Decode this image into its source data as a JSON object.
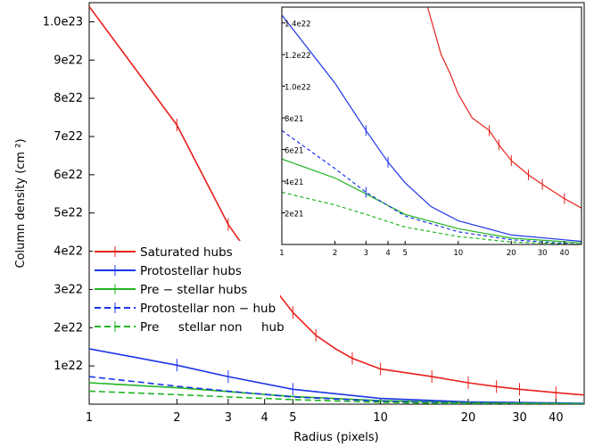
{
  "chart_data": [
    {
      "type": "line",
      "xlabel": "Radius (pixels)",
      "ylabel": "Column density (cm  ²)",
      "x_scale": "log",
      "xlim": [
        1,
        50
      ],
      "ylim": [
        0,
        1.05e+23
      ],
      "x_ticks": [
        1,
        2,
        3,
        4,
        5,
        10,
        20,
        30,
        40
      ],
      "x_tick_labels": [
        "1",
        "2",
        "3",
        "4",
        "5",
        "10",
        "20",
        "30",
        "40"
      ],
      "y_ticks": [
        1e+22,
        2e+22,
        3e+22,
        4e+22,
        5e+22,
        6e+22,
        7e+22,
        8e+22,
        9e+22,
        1e+23
      ],
      "y_tick_labels": [
        "1e22",
        "2e22",
        "3e22",
        "4e22",
        "5e22",
        "6e22",
        "7e22",
        "8e22",
        "9e22",
        "1.0e23"
      ],
      "grid": false,
      "legend_position": "center-left",
      "series": [
        {
          "name": "Saturated hubs",
          "color": "#e8201c",
          "style": "solid",
          "x": [
            1,
            2,
            3,
            4,
            5,
            6,
            7,
            8,
            10,
            15,
            20,
            25,
            30,
            40,
            50
          ],
          "y": [
            1.04e+23,
            7.3e+22,
            4.7e+22,
            3.35e+22,
            2.4e+22,
            1.8e+22,
            1.45e+22,
            1.2e+22,
            9.2e+21,
            7.2e+21,
            5.6e+21,
            4.6e+21,
            3.9e+21,
            3e+21,
            2.4e+21
          ],
          "error_bars_at": [
            2,
            3,
            4,
            5,
            6,
            8,
            10,
            15,
            20,
            25,
            30,
            40
          ]
        },
        {
          "name": "Protostellar hubs",
          "color": "#1c35e8",
          "style": "solid",
          "x": [
            1,
            2,
            3,
            5,
            10,
            20,
            50
          ],
          "y": [
            1.45e+22,
            1.02e+22,
            7.2e+21,
            3.9e+21,
            1.5e+21,
            6e+20,
            2e+20
          ],
          "error_bars_at": [
            2,
            3,
            5
          ]
        },
        {
          "name": "Pre − stellar hubs",
          "color": "#22b522",
          "style": "solid",
          "x": [
            1,
            2,
            3,
            5,
            10,
            20,
            50
          ],
          "y": [
            5.6e+21,
            4.3e+21,
            3.3e+21,
            2e+21,
            9e+20,
            4e+20,
            1e+20
          ],
          "error_bars_at": []
        },
        {
          "name": "Protostellar non − hub",
          "color": "#1c35e8",
          "style": "dashed",
          "x": [
            1,
            2,
            3,
            5,
            10,
            20,
            50
          ],
          "y": [
            7.2e+21,
            4.7e+21,
            3.4e+21,
            1.9e+21,
            8e+20,
            3e+20,
            0
          ],
          "error_bars_at": []
        },
        {
          "name": "Pre     stellar non     hub",
          "color": "#22b522",
          "style": "dashed",
          "x": [
            1,
            2,
            3,
            5,
            10,
            20,
            50
          ],
          "y": [
            3.4e+21,
            2.5e+21,
            1.9e+21,
            1.2e+21,
            5e+20,
            1.5e+20,
            0
          ],
          "error_bars_at": []
        }
      ]
    },
    {
      "type": "line",
      "inset": true,
      "x_scale": "log",
      "xlim": [
        1,
        50
      ],
      "ylim": [
        0,
        1.5e+22
      ],
      "x_ticks": [
        1,
        2,
        3,
        4,
        5,
        10,
        20,
        30,
        40
      ],
      "x_tick_labels": [
        "1",
        "2",
        "3",
        "4",
        "5",
        "10",
        "20",
        "30",
        "40"
      ],
      "y_ticks": [
        2e+21,
        4e+21,
        6e+21,
        8e+21,
        1e+22,
        1.2e+22,
        1.4e+22
      ],
      "y_tick_labels": [
        "2e21",
        "4e21",
        "6e21",
        "8e21",
        "1.0e22",
        "1.2e22",
        "1.4e22"
      ],
      "series": [
        {
          "color": "#e8201c",
          "style": "solid",
          "x": [
            6.7,
            8,
            9,
            10,
            12,
            15,
            17,
            20,
            25,
            30,
            40,
            50
          ],
          "y": [
            1.5e+22,
            1.2e+22,
            1.08e+22,
            9.5e+21,
            8e+21,
            7.2e+21,
            6.3e+21,
            5.3e+21,
            4.4e+21,
            3.8e+21,
            2.9e+21,
            2.3e+21
          ],
          "error_bars_at": [
            15,
            17,
            20,
            25,
            30,
            40,
            50
          ]
        },
        {
          "color": "#1c35e8",
          "style": "solid",
          "x": [
            1,
            2,
            3,
            4,
            5,
            7,
            10,
            20,
            50
          ],
          "y": [
            1.45e+22,
            1.02e+22,
            7.2e+21,
            5.2e+21,
            3.9e+21,
            2.4e+21,
            1.5e+21,
            6e+20,
            2e+20
          ],
          "error_bars_at": [
            3,
            4
          ]
        },
        {
          "color": "#22b522",
          "style": "solid",
          "x": [
            1,
            2,
            3,
            5,
            10,
            20,
            50
          ],
          "y": [
            5.4e+21,
            4.2e+21,
            3.2e+21,
            1.9e+21,
            1e+21,
            4e+20,
            1e+20
          ],
          "error_bars_at": []
        },
        {
          "color": "#1c35e8",
          "style": "dashed",
          "x": [
            1,
            2,
            3,
            5,
            10,
            20,
            50
          ],
          "y": [
            7.2e+21,
            4.8e+21,
            3.3e+21,
            1.8e+21,
            8e+20,
            3e+20,
            0
          ],
          "error_bars_at": [
            3
          ]
        },
        {
          "color": "#22b522",
          "style": "dashed",
          "x": [
            1,
            2,
            3,
            5,
            10,
            20,
            50
          ],
          "y": [
            3.3e+21,
            2.5e+21,
            1.9e+21,
            1.1e+21,
            5e+20,
            1.5e+20,
            0
          ],
          "error_bars_at": []
        }
      ]
    }
  ]
}
